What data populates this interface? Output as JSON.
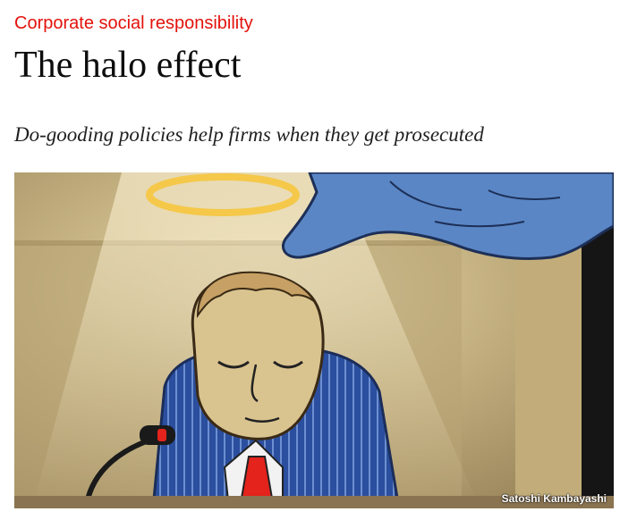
{
  "article": {
    "rubric": "Corporate social responsibility",
    "headline": "The halo effect",
    "standfirst": "Do-gooding policies help firms when they get prosecuted"
  },
  "illustration": {
    "credit": "Satoshi Kambayashi"
  },
  "colors": {
    "rubric": "#e3120b",
    "headline": "#0d0d0d",
    "halo": "#f5c84a",
    "glove": "#5a86c5",
    "suit": "#2b4f9e",
    "tie": "#e3231c"
  }
}
